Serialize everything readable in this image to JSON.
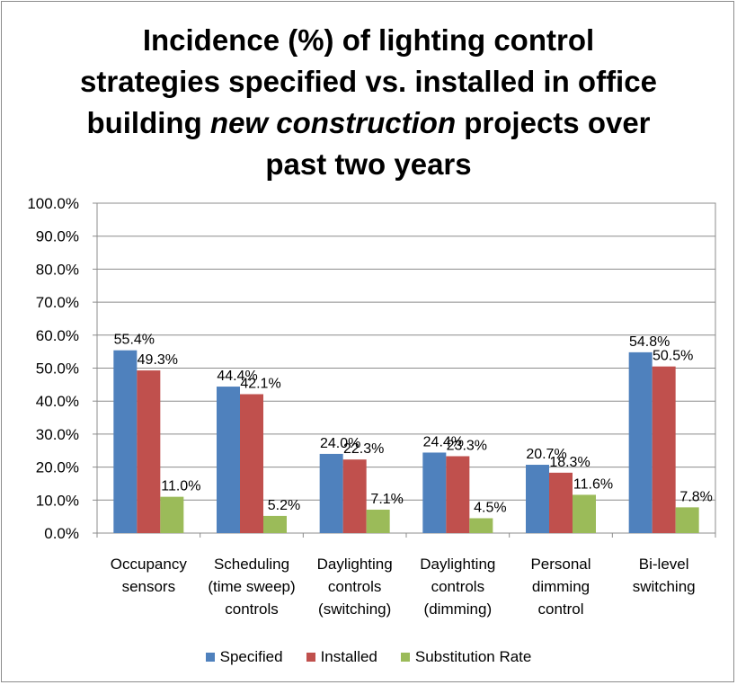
{
  "chart_data": {
    "type": "bar",
    "title_parts": [
      {
        "text": "Incidence (%) of lighting control",
        "italic": false,
        "br": true
      },
      {
        "text": "strategies specified vs. installed in office",
        "italic": false,
        "br": true
      },
      {
        "text": "building ",
        "italic": false,
        "br": false
      },
      {
        "text": "new construction",
        "italic": true,
        "br": false
      },
      {
        "text": " projects over",
        "italic": false,
        "br": true
      },
      {
        "text": "past two years",
        "italic": false,
        "br": false
      }
    ],
    "categories": [
      [
        "Occupancy",
        "sensors"
      ],
      [
        "Scheduling",
        "(time sweep)",
        "controls"
      ],
      [
        "Daylighting",
        "controls",
        "(switching)"
      ],
      [
        "Daylighting",
        "controls",
        "(dimming)"
      ],
      [
        "Personal",
        "dimming",
        "control"
      ],
      [
        "Bi-level",
        "switching"
      ]
    ],
    "series": [
      {
        "name": "Specified",
        "color": "#4f81bd",
        "values": [
          55.4,
          44.4,
          24.0,
          24.4,
          20.7,
          54.8
        ],
        "labels": [
          "55.4%",
          "44.4%",
          "24.0%",
          "24.4%",
          "20.7%",
          "54.8%"
        ]
      },
      {
        "name": "Installed",
        "color": "#c0504d",
        "values": [
          49.3,
          42.1,
          22.3,
          23.3,
          18.3,
          50.5
        ],
        "labels": [
          "49.3%",
          "42.1%",
          "22.3%",
          "23.3%",
          "18.3%",
          "50.5%"
        ]
      },
      {
        "name": "Substitution Rate",
        "color": "#9bbb59",
        "values": [
          11.0,
          5.2,
          7.1,
          4.5,
          11.6,
          7.8
        ],
        "labels": [
          "11.0%",
          "5.2%",
          "7.1%",
          "4.5%",
          "11.6%",
          "7.8%"
        ]
      }
    ],
    "y_ticks": [
      "0.0%",
      "10.0%",
      "20.0%",
      "30.0%",
      "40.0%",
      "50.0%",
      "60.0%",
      "70.0%",
      "80.0%",
      "90.0%",
      "100.0%"
    ],
    "ylim": [
      0,
      100
    ],
    "grid": true,
    "legend_position": "bottom"
  }
}
